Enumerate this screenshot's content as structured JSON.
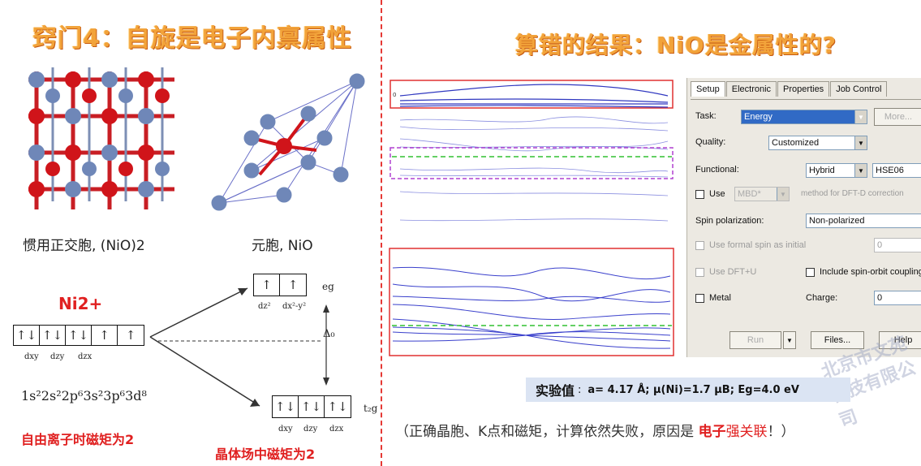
{
  "left": {
    "title": "窍门4：自旋是电子内禀属性",
    "caption_conventional": "惯用正交胞, (NiO)2",
    "caption_primitive": "元胞, NiO",
    "ion_label": "Ni2+",
    "free_ion_orbitals": [
      "↑↓",
      "↑↓",
      "↑↓",
      "↑",
      "↑"
    ],
    "free_ion_sublabels": [
      "dxy",
      "dzy",
      "dzx"
    ],
    "electron_config": "1s²2s²2p⁶3s²3p⁶3d⁸",
    "eg_orbitals": [
      "↑",
      "↑"
    ],
    "eg_sublabels": [
      "dz²",
      "dx²-y²"
    ],
    "eg_label": "eg",
    "delta_label": "Δ₀",
    "t2g_orbitals": [
      "↑↓",
      "↑↓",
      "↑↓"
    ],
    "t2g_sublabels": [
      "dxy",
      "dzy",
      "dzx"
    ],
    "t2g_label": "t₂g",
    "free_ion_note": "自由离子时磁矩为2",
    "crystal_field_note": "晶体场中磁矩为2",
    "colors": {
      "red": "#e02020",
      "atom_red": "#d0141a",
      "atom_blue": "#6f87b8"
    }
  },
  "right": {
    "title": "算错的结果：NiO是金属性的?",
    "band_zero_label": "0",
    "panel": {
      "tabs": [
        "Setup",
        "Electronic",
        "Properties",
        "Job Control"
      ],
      "task_label": "Task:",
      "task_value": "Energy",
      "more_button": "More...",
      "quality_label": "Quality:",
      "quality_value": "Customized",
      "functional_label": "Functional:",
      "functional_type": "Hybrid",
      "functional_value": "HSE06",
      "use_label": "Use",
      "mbd_value": "MBD*",
      "dftd_text": "method for DFT-D correction",
      "spin_label": "Spin polarization:",
      "spin_value": "Non-polarized",
      "formal_spin_label": "Use formal spin as initial",
      "formal_spin_value": "0",
      "dftu_label": "Use DFT+U",
      "soc_label": "Include spin-orbit coupling",
      "metal_label": "Metal",
      "charge_label": "Charge:",
      "charge_value": "0",
      "run_button": "Run",
      "files_button": "Files...",
      "help_button": "Help"
    },
    "experiment_heading": "实验值",
    "experiment_colon": ":",
    "experiment_values": "a= 4.17 Å; μ(Ni)=1.7 μB; Eg=4.0 eV",
    "conclusion_prefix": "（正确晶胞、K点和磁矩，计算依然失败，原因是",
    "conclusion_red_bold": "电子",
    "conclusion_red": "强关联",
    "conclusion_suffix": "！）",
    "watermark": "北京市文苑科技有限公司"
  }
}
